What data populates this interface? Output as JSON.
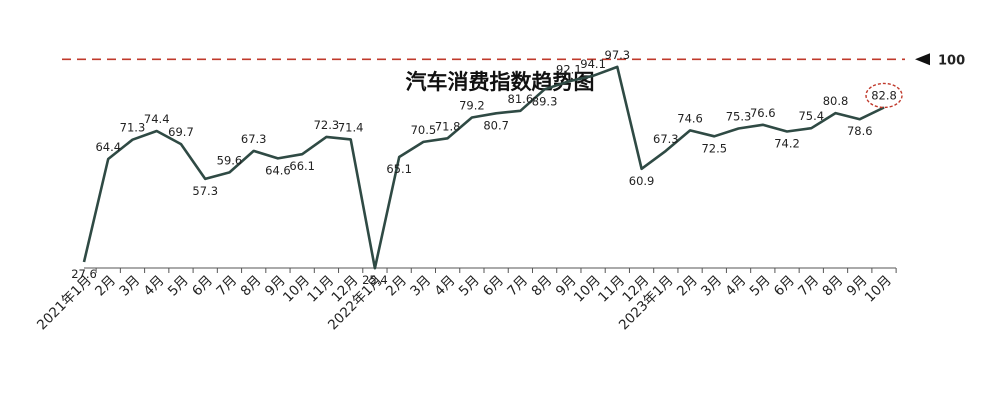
{
  "chart_data": {
    "type": "line",
    "title": "汽车消费指数趋势图",
    "categories": [
      "2021年1月",
      "2月",
      "3月",
      "4月",
      "5月",
      "6月",
      "7月",
      "8月",
      "9月",
      "10月",
      "11月",
      "12月",
      "2022年1月",
      "2月",
      "3月",
      "4月",
      "5月",
      "6月",
      "7月",
      "8月",
      "9月",
      "10月",
      "11月",
      "12月",
      "2023年1月",
      "2月",
      "3月",
      "4月",
      "5月",
      "6月",
      "7月",
      "8月",
      "9月",
      "10月"
    ],
    "series": [
      {
        "values": [
          27.6,
          64.4,
          71.3,
          74.4,
          69.7,
          57.3,
          59.6,
          67.3,
          64.6,
          66.1,
          72.3,
          71.4,
          25.4,
          65.1,
          70.5,
          71.8,
          79.2,
          80.7,
          81.6,
          89.3,
          92.1,
          94.1,
          97.3,
          60.9,
          67.3,
          74.6,
          72.5,
          75.3,
          76.6,
          74.2,
          75.4,
          80.8,
          78.6,
          82.8
        ]
      }
    ],
    "reference_line": {
      "value": 100,
      "label": "100",
      "style": "dashed"
    },
    "highlight_last_point": true,
    "ylim": [
      0,
      110
    ],
    "xlabel": "",
    "ylabel": "",
    "grid": false,
    "legend": "none",
    "colors": {
      "line": "#2f4a44",
      "reference": "#c0392b",
      "highlight": "#c0392b",
      "text": "#222222"
    }
  }
}
